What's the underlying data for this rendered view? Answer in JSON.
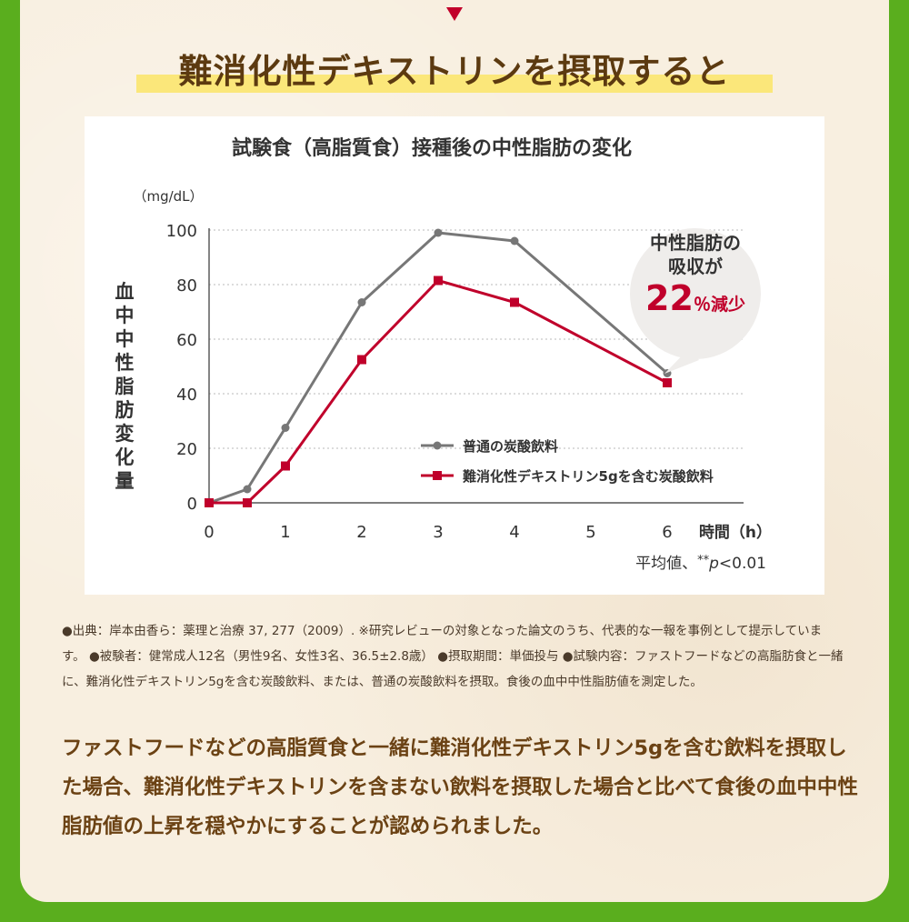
{
  "heading": "難消化性デキストリンを摂取すると",
  "chart_data": {
    "type": "line",
    "title": "試験食（高脂質食）接種後の中性脂肪の変化",
    "ylabel": "血中中性脂肪変化量",
    "yunit": "（mg/dL）",
    "xlabel": "時間（h）",
    "x_ticks": [
      0,
      1,
      2,
      3,
      4,
      5,
      6
    ],
    "y_ticks": [
      0,
      20,
      40,
      60,
      80,
      100
    ],
    "xlim": [
      0,
      7
    ],
    "ylim": [
      0,
      100
    ],
    "grid": "horizontal dotted",
    "legend_position": "lower-right",
    "series": [
      {
        "name": "普通の炭酸飲料",
        "color": "#777777",
        "marker": "circle",
        "x": [
          0,
          0.5,
          1,
          2,
          3,
          4,
          6
        ],
        "y": [
          0,
          5,
          27.5,
          73.5,
          99,
          96,
          47.5
        ]
      },
      {
        "name": "難消化性デキストリン5gを含む炭酸飲料",
        "color": "#c0002b",
        "marker": "square",
        "x": [
          0,
          0.5,
          1,
          2,
          3,
          4,
          6
        ],
        "y": [
          0,
          0,
          13.5,
          52.5,
          81.5,
          73.5,
          44
        ]
      }
    ],
    "callout": {
      "line1": "中性脂肪の",
      "line2": "吸収が",
      "value": "22",
      "unit": "％減少"
    },
    "note_prefix": "平均値、",
    "note_stars": "**",
    "note_p": "p",
    "note_suffix": "<0.01"
  },
  "footnote": "●出典：岸本由香ら：薬理と治療 37, 277（2009）. ※研究レビューの対象となった論文のうち、代表的な一報を事例として提示しています。 ●被験者：健常成人12名（男性9名、女性3名、36.5±2.8歳） ●摂取期間：単価投与 ●試験内容：ファストフードなどの高脂肪食と一緒に、難消化性デキストリン5gを含む炭酸飲料、または、普通の炭酸飲料を摂取。食後の血中中性脂肪値を測定した。",
  "summary": "ファストフードなどの高脂質食と一緒に難消化性デキストリン5gを含む飲料を摂取した場合、難消化性デキストリンを含まない飲料を摂取した場合と比べて食後の血中中性脂肪値の上昇を穏やかにすることが認められました。",
  "colors": {
    "accent_red": "#c0002b",
    "heading_brown": "#5c3a10",
    "highlight_yellow": "#fbe77a",
    "background_green": "#5aae1e"
  }
}
